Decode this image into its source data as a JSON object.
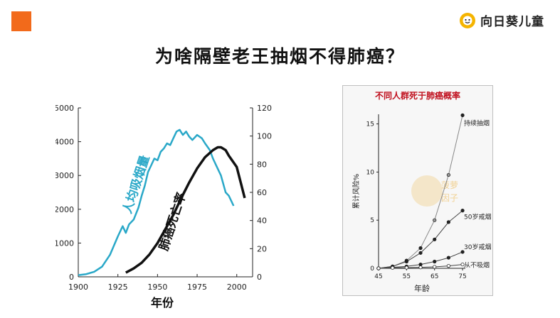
{
  "brand": {
    "name": "向日葵儿童",
    "accent": "#f26a1b",
    "logo_color": "#f5b400"
  },
  "page_title": "为啥隔壁老王抽烟不得肺癌？",
  "chart_data": [
    {
      "type": "line",
      "x_axis": {
        "label": "年份",
        "ticks": [
          1900,
          1925,
          1950,
          1975,
          2000
        ],
        "range": [
          1900,
          2010
        ]
      },
      "y_left": {
        "ticks": [
          0,
          1000,
          2000,
          3000,
          4000,
          5000
        ],
        "range": [
          0,
          5000
        ]
      },
      "y_right": {
        "ticks": [
          0,
          20,
          40,
          60,
          80,
          100,
          120
        ],
        "range": [
          0,
          120
        ]
      },
      "series": [
        {
          "name": "人均吸烟量",
          "axis": "left",
          "color": "#2aa8c8",
          "x": [
            1900,
            1905,
            1910,
            1915,
            1920,
            1925,
            1928,
            1930,
            1932,
            1935,
            1938,
            1940,
            1942,
            1944,
            1946,
            1948,
            1950,
            1952,
            1954,
            1956,
            1958,
            1960,
            1962,
            1964,
            1966,
            1968,
            1970,
            1972,
            1975,
            1978,
            1980,
            1983,
            1985,
            1988,
            1990,
            1993,
            1995,
            1998
          ],
          "y": [
            50,
            80,
            150,
            300,
            650,
            1200,
            1500,
            1300,
            1550,
            1700,
            2050,
            2400,
            2700,
            3100,
            3300,
            3500,
            3450,
            3700,
            3800,
            3950,
            3900,
            4100,
            4300,
            4350,
            4200,
            4300,
            4150,
            4050,
            4200,
            4100,
            3950,
            3750,
            3500,
            3200,
            3000,
            2500,
            2400,
            2100
          ]
        },
        {
          "name": "肺癌死亡率",
          "axis": "right",
          "color": "#111111",
          "x": [
            1930,
            1935,
            1940,
            1945,
            1950,
            1955,
            1960,
            1965,
            1970,
            1975,
            1980,
            1985,
            1988,
            1990,
            1993,
            1995,
            2000,
            2005
          ],
          "y": [
            3,
            6,
            10,
            16,
            24,
            34,
            44,
            56,
            67,
            77,
            85,
            90,
            92,
            92,
            90,
            86,
            78,
            56
          ]
        }
      ]
    },
    {
      "type": "line",
      "title": "不同人群死于肺癌概率",
      "x_axis": {
        "label": "年龄",
        "ticks": [
          45,
          55,
          65,
          75
        ],
        "range": [
          45,
          76
        ]
      },
      "y_axis": {
        "label": "累计风险%",
        "ticks": [
          0,
          5,
          10,
          15
        ],
        "range": [
          0,
          16
        ]
      },
      "watermark": [
        "菠萝",
        "因子"
      ],
      "series": [
        {
          "name": "持续抽烟",
          "marker": "filled",
          "color": "#444444",
          "x": [
            45,
            50,
            55,
            60,
            65,
            70,
            75
          ],
          "y": [
            0,
            0.2,
            0.8,
            2.1,
            5,
            9.7,
            15.9
          ]
        },
        {
          "name": "50岁戒烟",
          "marker": "filled",
          "color": "#333333",
          "x": [
            45,
            50,
            55,
            60,
            65,
            70,
            75
          ],
          "y": [
            0,
            0.2,
            0.7,
            1.6,
            3,
            4.8,
            6
          ]
        },
        {
          "name": "30岁戒烟",
          "marker": "filled",
          "color": "#333333",
          "x": [
            45,
            50,
            55,
            60,
            65,
            70,
            75
          ],
          "y": [
            0,
            0.1,
            0.2,
            0.4,
            0.7,
            1.1,
            1.7
          ]
        },
        {
          "name": "从不吸烟",
          "marker": "hollow",
          "color": "#333333",
          "x": [
            45,
            50,
            55,
            60,
            65,
            70,
            75
          ],
          "y": [
            0,
            0.05,
            0.07,
            0.1,
            0.15,
            0.25,
            0.4
          ]
        }
      ]
    }
  ]
}
